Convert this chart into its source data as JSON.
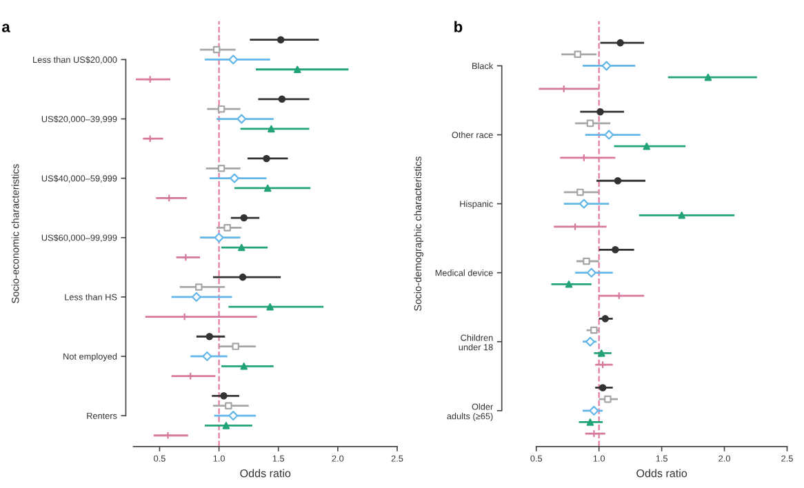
{
  "chart_data": [
    {
      "type": "scatter",
      "orientation": "horizontal",
      "title": "a",
      "xlabel": "Odds ratio",
      "ylabel": "Socio-economic characteristics",
      "categories": [
        "Less than US$20,000",
        "US$20,000–39,999",
        "US$40,000–59,999",
        "US$60,000–99,999",
        "Less than HS",
        "Not employed",
        "Renters"
      ],
      "xlim": [
        0.28,
        2.5
      ],
      "xticks": [
        {
          "value": 0.5,
          "label": "0.5"
        },
        {
          "value": 1.0,
          "label": "1.0"
        },
        {
          "value": 1.5,
          "label": "1.5"
        },
        {
          "value": 2.0,
          "label": "2.0"
        },
        {
          "value": 2.5,
          "label": "2.5"
        }
      ],
      "grid": false,
      "ref_lines": [
        {
          "axis": "x",
          "value": 1.0,
          "color": "#e27aa3",
          "line_style": "dashed"
        }
      ],
      "series": [
        {
          "color": "#333333",
          "marker": "circle",
          "values": [
            1.52,
            1.53,
            1.4,
            1.21,
            1.2,
            0.92,
            1.04
          ],
          "errors": [
            [
              1.26,
              1.84
            ],
            [
              1.33,
              1.76
            ],
            [
              1.24,
              1.58
            ],
            [
              1.1,
              1.34
            ],
            [
              0.95,
              1.52
            ],
            [
              0.81,
              1.05
            ],
            [
              0.94,
              1.17
            ]
          ]
        },
        {
          "color": "#a6a6a6",
          "marker": "square",
          "values": [
            0.98,
            1.02,
            1.02,
            1.07,
            0.83,
            1.14,
            1.08
          ],
          "errors": [
            [
              0.84,
              1.14
            ],
            [
              0.9,
              1.18
            ],
            [
              0.89,
              1.18
            ],
            [
              0.98,
              1.19
            ],
            [
              0.67,
              1.05
            ],
            [
              1.0,
              1.31
            ],
            [
              0.95,
              1.25
            ]
          ]
        },
        {
          "color": "#62b6e8",
          "marker": "diamond",
          "values": [
            1.12,
            1.19,
            1.13,
            1.0,
            0.81,
            0.9,
            1.12
          ],
          "errors": [
            [
              0.88,
              1.43
            ],
            [
              0.98,
              1.46
            ],
            [
              0.92,
              1.4
            ],
            [
              0.84,
              1.18
            ],
            [
              0.6,
              1.11
            ],
            [
              0.76,
              1.07
            ],
            [
              0.96,
              1.31
            ]
          ]
        },
        {
          "color": "#22a37a",
          "marker": "triangle",
          "values": [
            1.66,
            1.44,
            1.41,
            1.19,
            1.43,
            1.21,
            1.06
          ],
          "errors": [
            [
              1.31,
              2.09
            ],
            [
              1.18,
              1.76
            ],
            [
              1.13,
              1.77
            ],
            [
              1.02,
              1.41
            ],
            [
              1.08,
              1.88
            ],
            [
              1.02,
              1.46
            ],
            [
              0.88,
              1.28
            ]
          ]
        },
        {
          "color": "#d6799c",
          "marker": "cross",
          "values": [
            0.42,
            0.42,
            0.58,
            0.72,
            0.71,
            0.76,
            0.57
          ],
          "errors": [
            [
              0.3,
              0.59
            ],
            [
              0.36,
              0.53
            ],
            [
              0.47,
              0.73
            ],
            [
              0.64,
              0.84
            ],
            [
              0.38,
              1.32
            ],
            [
              0.6,
              0.97
            ],
            [
              0.45,
              0.74
            ]
          ]
        }
      ]
    },
    {
      "type": "scatter",
      "orientation": "horizontal",
      "title": "b",
      "xlabel": "Odds ratio",
      "ylabel": "Socio-demographic characteristics",
      "categories": [
        "Black",
        "Other race",
        "Hispanic",
        "Medical device",
        "Children\nunder 18",
        "Older\nadults (≥65)"
      ],
      "xlim": [
        0.5,
        2.5
      ],
      "xticks": [
        {
          "value": 0.5,
          "label": "0.5"
        },
        {
          "value": 1.0,
          "label": "1.0"
        },
        {
          "value": 1.5,
          "label": "1.5"
        },
        {
          "value": 2.0,
          "label": "2.0"
        },
        {
          "value": 2.5,
          "label": "2.5"
        }
      ],
      "grid": false,
      "ref_lines": [
        {
          "axis": "x",
          "value": 1.0,
          "color": "#e27aa3",
          "line_style": "dashed"
        }
      ],
      "series": [
        {
          "color": "#333333",
          "marker": "circle",
          "values": [
            1.17,
            1.01,
            1.15,
            1.13,
            1.05,
            1.03
          ],
          "errors": [
            [
              1.01,
              1.36
            ],
            [
              0.85,
              1.2
            ],
            [
              0.98,
              1.37
            ],
            [
              1.0,
              1.28
            ],
            [
              1.0,
              1.11
            ],
            [
              0.97,
              1.11
            ]
          ]
        },
        {
          "color": "#a6a6a6",
          "marker": "square",
          "values": [
            0.83,
            0.93,
            0.85,
            0.9,
            0.96,
            1.07
          ],
          "errors": [
            [
              0.7,
              0.98
            ],
            [
              0.81,
              1.09
            ],
            [
              0.72,
              1.0
            ],
            [
              0.82,
              1.0
            ],
            [
              0.9,
              1.0
            ],
            [
              1.0,
              1.15
            ]
          ]
        },
        {
          "color": "#62b6e8",
          "marker": "diamond",
          "values": [
            1.06,
            1.08,
            0.88,
            0.94,
            0.93,
            0.96
          ],
          "errors": [
            [
              0.87,
              1.29
            ],
            [
              0.89,
              1.33
            ],
            [
              0.72,
              1.08
            ],
            [
              0.81,
              1.11
            ],
            [
              0.87,
              0.98
            ],
            [
              0.87,
              1.03
            ]
          ]
        },
        {
          "color": "#22a37a",
          "marker": "triangle",
          "values": [
            1.87,
            1.38,
            1.66,
            0.76,
            1.02,
            0.93
          ],
          "errors": [
            [
              1.55,
              2.26
            ],
            [
              1.12,
              1.69
            ],
            [
              1.32,
              2.08
            ],
            [
              0.62,
              0.94
            ],
            [
              0.96,
              1.1
            ],
            [
              0.84,
              1.03
            ]
          ]
        },
        {
          "color": "#d6799c",
          "marker": "cross",
          "values": [
            0.72,
            0.88,
            0.81,
            1.16,
            1.03,
            0.96
          ],
          "errors": [
            [
              0.52,
              1.0
            ],
            [
              0.69,
              1.13
            ],
            [
              0.64,
              1.06
            ],
            [
              1.0,
              1.36
            ],
            [
              0.97,
              1.11
            ],
            [
              0.89,
              1.05
            ]
          ]
        }
      ]
    }
  ]
}
